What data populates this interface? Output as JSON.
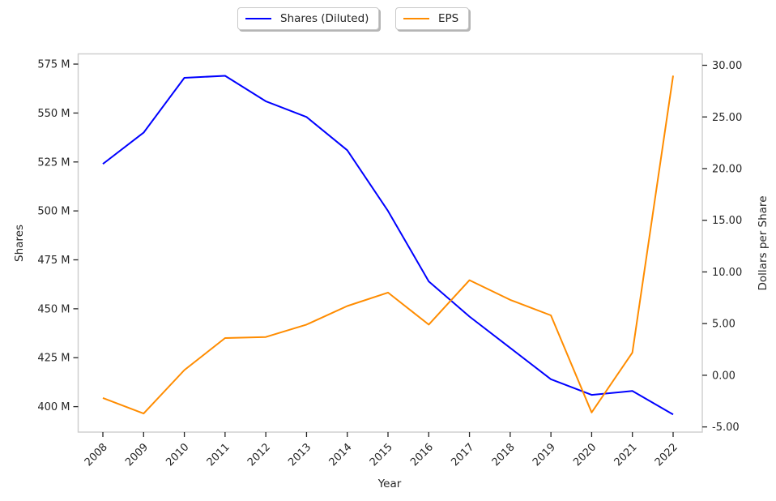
{
  "chart_data": {
    "type": "line",
    "title": "",
    "x": [
      "2008",
      "2009",
      "2010",
      "2011",
      "2012",
      "2013",
      "2014",
      "2015",
      "2016",
      "2017",
      "2018",
      "2019",
      "2020",
      "2021",
      "2022"
    ],
    "series": [
      {
        "name": "Shares (Diluted)",
        "axis": "left",
        "color": "#0000ff",
        "unit": "millions of shares",
        "values": [
          524,
          540,
          568,
          569,
          556,
          548,
          531,
          500,
          464,
          446,
          430,
          414,
          406,
          408,
          396
        ]
      },
      {
        "name": "EPS",
        "axis": "right",
        "color": "#ff8c00",
        "unit": "dollars per share",
        "values": [
          -2.2,
          -3.7,
          0.5,
          3.6,
          3.7,
          4.9,
          6.7,
          8.0,
          4.9,
          9.2,
          7.3,
          5.8,
          -3.6,
          2.2,
          29.0
        ]
      }
    ],
    "axes": {
      "x": {
        "label": "Year",
        "tick_rotation": 45
      },
      "left": {
        "label": "Shares",
        "ylim": [
          387.0,
          580.2
        ],
        "ticks": [
          {
            "v": 575,
            "label": "575 M"
          },
          {
            "v": 550,
            "label": "550 M"
          },
          {
            "v": 525,
            "label": "525 M"
          },
          {
            "v": 500,
            "label": "500 M"
          },
          {
            "v": 475,
            "label": "475 M"
          },
          {
            "v": 450,
            "label": "450 M"
          },
          {
            "v": 425,
            "label": "425 M"
          },
          {
            "v": 400,
            "label": "400 M"
          }
        ]
      },
      "right": {
        "label": "Dollars per Share",
        "ylim": [
          -5.5,
          31.1
        ],
        "ticks": [
          {
            "v": 30,
            "label": "30.00"
          },
          {
            "v": 25,
            "label": "25.00"
          },
          {
            "v": 20,
            "label": "20.00"
          },
          {
            "v": 15,
            "label": "15.00"
          },
          {
            "v": 10,
            "label": "10.00"
          },
          {
            "v": 5,
            "label": "5.00"
          },
          {
            "v": 0,
            "label": "0.00"
          },
          {
            "v": -5,
            "label": "-5.00"
          }
        ]
      }
    },
    "legend": {
      "position": "top-center",
      "style": "two separate rounded boxes with shadow"
    },
    "grid": false,
    "colors": {
      "spine": "#cccccc",
      "tick_mark": "#262626",
      "text": "#262626",
      "background": "#ffffff"
    }
  }
}
